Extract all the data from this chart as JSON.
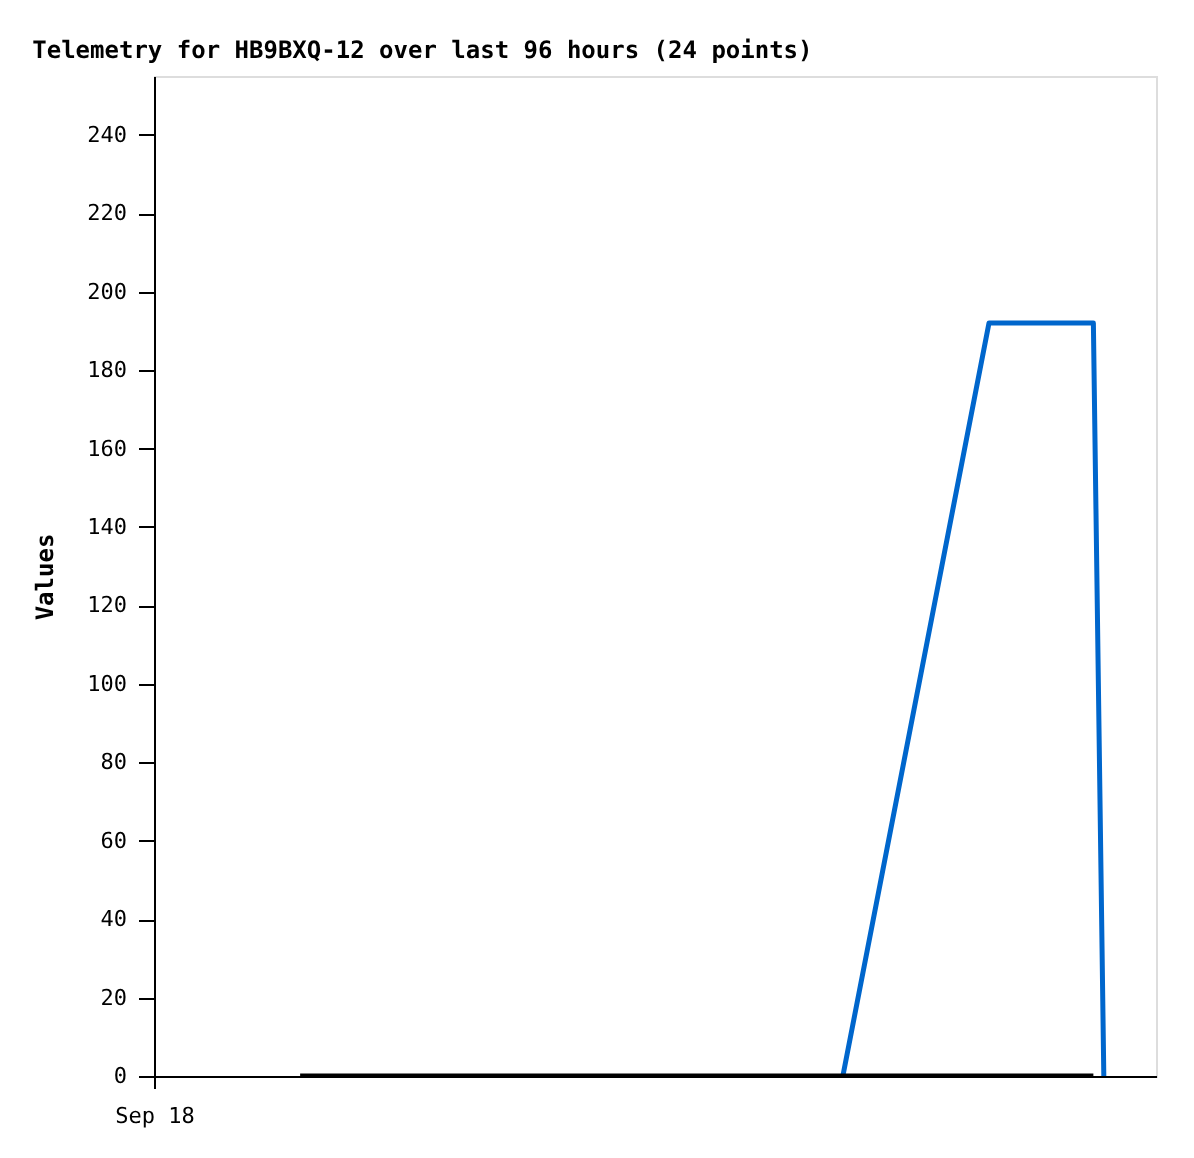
{
  "chart_data": {
    "type": "line",
    "title": "Telemetry for HB9BXQ-12 over last 96 hours (24 points)",
    "ylabel": "Values",
    "categories": [
      "Sep 18",
      null,
      null,
      null,
      null,
      null,
      null,
      null,
      null,
      null,
      null,
      null,
      null,
      null,
      null,
      null,
      null,
      null,
      null,
      null,
      null,
      null,
      null,
      null,
      null,
      null,
      null,
      null,
      null,
      null,
      null,
      null,
      null,
      null,
      null,
      null,
      null,
      null,
      null,
      null,
      null,
      null,
      null,
      null,
      null,
      null,
      null,
      null,
      null,
      null,
      null,
      null,
      null,
      null,
      null,
      null,
      null,
      null,
      null,
      null,
      null,
      null,
      null,
      null,
      null,
      null,
      null,
      null,
      null,
      null,
      null,
      null,
      null,
      null,
      null,
      null,
      null,
      null,
      null,
      null,
      null,
      null,
      null,
      null,
      null,
      null,
      null,
      null,
      null,
      null,
      null,
      null,
      null,
      null,
      null,
      null,
      null
    ],
    "ylim": [
      0,
      255
    ],
    "yticks": [
      0,
      20,
      40,
      60,
      80,
      100,
      120,
      140,
      160,
      180,
      200,
      220,
      240
    ],
    "grid": false,
    "marker": "none",
    "line_style": "solid",
    "series": [
      {
        "color": "#0066cc",
        "values": [
          null,
          null,
          null,
          null,
          null,
          null,
          null,
          null,
          null,
          null,
          null,
          null,
          null,
          null,
          null,
          null,
          null,
          null,
          null,
          null,
          null,
          null,
          null,
          null,
          null,
          null,
          null,
          null,
          null,
          null,
          null,
          null,
          null,
          null,
          null,
          null,
          null,
          null,
          null,
          null,
          null,
          null,
          null,
          null,
          null,
          null,
          null,
          null,
          null,
          null,
          null,
          null,
          null,
          null,
          null,
          null,
          null,
          null,
          null,
          null,
          null,
          null,
          null,
          null,
          null,
          null,
          0,
          null,
          null,
          null,
          null,
          null,
          null,
          null,
          null,
          null,
          null,
          null,
          null,
          null,
          192,
          192,
          192,
          192,
          192,
          192,
          192,
          192,
          192,
          192,
          192,
          0,
          null,
          null,
          null,
          null,
          null
        ]
      },
      {
        "color": "#000000",
        "values": [
          null,
          null,
          null,
          null,
          null,
          null,
          null,
          null,
          null,
          null,
          null,
          null,
          null,
          null,
          0,
          0,
          0,
          0,
          0,
          0,
          0,
          0,
          0,
          0,
          0,
          0,
          0,
          0,
          0,
          0,
          0,
          0,
          0,
          0,
          0,
          0,
          0,
          0,
          0,
          0,
          0,
          0,
          0,
          0,
          0,
          0,
          0,
          0,
          0,
          0,
          0,
          0,
          0,
          0,
          0,
          0,
          0,
          0,
          0,
          0,
          0,
          0,
          0,
          0,
          0,
          0,
          0,
          0,
          0,
          0,
          0,
          0,
          0,
          0,
          0,
          0,
          0,
          0,
          0,
          0,
          0,
          0,
          0,
          0,
          0,
          0,
          0,
          0,
          0,
          0,
          0,
          null,
          null,
          null,
          null,
          null,
          null
        ]
      }
    ]
  }
}
